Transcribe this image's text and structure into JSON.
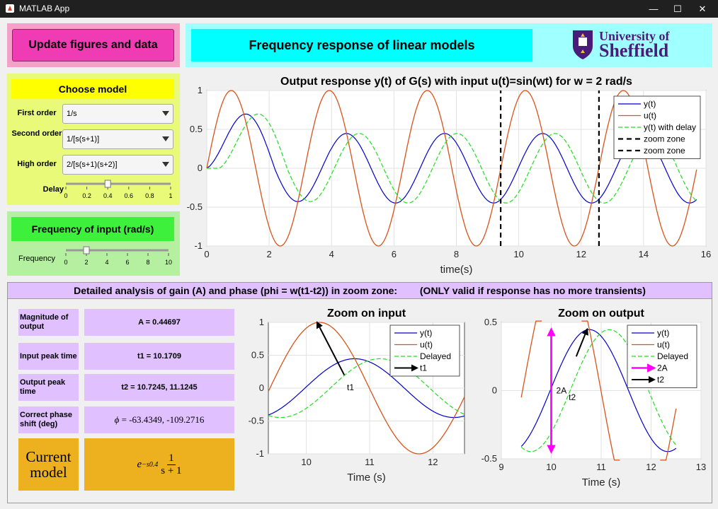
{
  "window": {
    "title": "MATLAB App"
  },
  "update_button": "Update figures and data",
  "model_panel": {
    "title": "Choose model",
    "first_order_label": "First order",
    "first_order_value": "1/s",
    "second_order_label": "Second order",
    "second_order_value": "1/[s(s+1)]",
    "high_order_label": "High order",
    "high_order_value": "2/[s(s+1)(s+2)]",
    "delay_label": "Delay",
    "delay_value": 0.4,
    "delay_ticks": [
      "0",
      "0.2",
      "0.4",
      "0.6",
      "0.8",
      "1"
    ]
  },
  "frequency_panel": {
    "title": "Frequency of input (rad/s)",
    "label": "Frequency",
    "value": 2,
    "ticks": [
      "0",
      "2",
      "4",
      "6",
      "8",
      "10"
    ]
  },
  "header": {
    "title": "Frequency response of linear models",
    "logo_text_1": "University of",
    "logo_text_2": "Sheffield"
  },
  "main_plot": {
    "title": "Output response y(t) of G(s) with input u(t)=sin(wt) for w = 2 rad/s",
    "xlabel": "time(s)",
    "xticks": [
      "0",
      "2",
      "4",
      "6",
      "8",
      "10",
      "12",
      "14",
      "16"
    ],
    "yticks": [
      "1",
      "0.5",
      "0",
      "-0.5",
      "-1"
    ],
    "legend": [
      "y(t)",
      "u(t)",
      "y(t) with delay",
      "zoom zone",
      "zoom zone"
    ]
  },
  "analysis": {
    "header_left": "Detailed analysis of gain (A) and phase (phi = w(t1-t2)) in zoom zone:",
    "header_right": "(ONLY valid if response has no more transients)",
    "rows": [
      {
        "label": "Magnitude of output",
        "value": "A = 0.44697"
      },
      {
        "label": "Input peak time",
        "value": "t1 = 10.1709"
      },
      {
        "label": "Output peak time",
        "value": "t2 = 10.7245,   11.1245"
      },
      {
        "label": "Correct phase shift (deg)",
        "value": "= -63.4349, -109.2716"
      }
    ],
    "phi_symbol": "ϕ",
    "current_model_label": "Current model",
    "current_model_formula_base": "e",
    "current_model_formula_exp": "−s0.4",
    "current_model_num": "1",
    "current_model_den": "s + 1"
  },
  "zoom_input": {
    "title": "Zoom on input",
    "xlabel": "Time (s)",
    "xticks": [
      "10",
      "11",
      "12"
    ],
    "yticks": [
      "1",
      "0.5",
      "0",
      "-0.5",
      "-1"
    ],
    "legend": [
      "y(t)",
      "u(t)",
      "Delayed",
      "t1"
    ],
    "annot": "t1"
  },
  "zoom_output": {
    "title": "Zoom on output",
    "xlabel": "Time (s)",
    "xticks": [
      "9",
      "10",
      "11",
      "12",
      "13"
    ],
    "yticks": [
      "0.5",
      "0",
      "-0.5"
    ],
    "legend": [
      "y(t)",
      "u(t)",
      "Delayed",
      "2A",
      "t2"
    ],
    "annot_2a": "2A",
    "annot_t2": "t2"
  },
  "chart_data": [
    {
      "type": "line",
      "title": "Output response y(t) of G(s) with input u(t)=sin(wt) for w = 2 rad/s",
      "xlabel": "time(s)",
      "ylabel": "",
      "xlim": [
        0,
        16
      ],
      "ylim": [
        -1,
        1
      ],
      "grid": true,
      "legend_position": "top-right",
      "series": [
        {
          "name": "y(t)",
          "color": "#0000cc",
          "x": [
            0,
            0.5,
            1,
            1.3,
            2,
            2.9,
            3.5,
            4.5,
            5.5,
            6.1,
            7,
            7.7,
            8.6,
            9.2,
            10,
            10.8,
            11.7,
            12.3,
            13.2,
            13.9,
            14.8,
            15.6
          ],
          "y": [
            0,
            0.3,
            0.52,
            0.56,
            0.2,
            -0.43,
            -0.3,
            0.45,
            0.0,
            -0.45,
            0.1,
            0.45,
            -0.1,
            -0.45,
            0.1,
            0.45,
            -0.1,
            -0.45,
            0.1,
            0.45,
            -0.1,
            -0.43
          ]
        },
        {
          "name": "u(t)",
          "color": "#d95319",
          "x": [
            0,
            0.79,
            1.57,
            2.36,
            3.14,
            3.93,
            4.71,
            5.5,
            6.28,
            7.07,
            7.85,
            8.64,
            9.42,
            10.21,
            11,
            11.78,
            12.57,
            13.35,
            14.14,
            14.92,
            15.7
          ],
          "y": [
            0,
            1,
            0,
            -1,
            0,
            1,
            0,
            -1,
            0,
            1,
            0,
            -1,
            0,
            1,
            0,
            -1,
            0,
            1,
            0,
            -1,
            0
          ]
        },
        {
          "name": "y(t) with delay",
          "color": "#22dd22",
          "x": [
            0,
            0.4,
            0.9,
            1.7,
            2.4,
            3.3,
            4.1,
            4.9,
            5.7,
            6.5,
            7.3,
            8.1,
            8.9,
            9.6,
            10.4,
            11.2,
            12,
            12.7,
            13.5,
            14.3,
            15.1,
            15.6
          ],
          "y": [
            0,
            0,
            0.3,
            0.56,
            0.2,
            -0.43,
            0.0,
            0.45,
            0.0,
            -0.45,
            0.1,
            0.45,
            -0.1,
            -0.45,
            0.1,
            0.45,
            -0.1,
            -0.45,
            0.1,
            0.45,
            -0.1,
            -0.4
          ]
        },
        {
          "name": "zoom zone",
          "color": "#000000",
          "x": [
            9.42,
            9.42
          ],
          "y": [
            -1,
            1
          ]
        },
        {
          "name": "zoom zone",
          "color": "#000000",
          "x": [
            12.57,
            12.57
          ],
          "y": [
            -1,
            1
          ]
        }
      ]
    },
    {
      "type": "line",
      "title": "Zoom on input",
      "xlabel": "Time (s)",
      "ylabel": "",
      "xlim": [
        9.4,
        12.5
      ],
      "ylim": [
        -1,
        1
      ],
      "grid": true,
      "legend_position": "top-right",
      "series": [
        {
          "name": "y(t)",
          "color": "#0000cc",
          "x": [
            9.4,
            9.8,
            10.2,
            10.72,
            11.2,
            11.7,
            12.3,
            12.5
          ],
          "y": [
            -0.4,
            -0.2,
            0.15,
            0.45,
            0.3,
            -0.05,
            -0.45,
            -0.4
          ]
        },
        {
          "name": "u(t)",
          "color": "#d95319",
          "x": [
            9.4,
            9.8,
            10.17,
            10.6,
            11.0,
            11.4,
            11.8,
            12.2,
            12.5
          ],
          "y": [
            0,
            0.7,
            1,
            0.7,
            0,
            -0.7,
            -1,
            -0.6,
            0
          ]
        },
        {
          "name": "Delayed",
          "color": "#22dd22",
          "x": [
            9.4,
            9.6,
            10.0,
            10.5,
            11.12,
            11.6,
            12.0,
            12.5
          ],
          "y": [
            -0.4,
            -0.45,
            -0.3,
            0.15,
            0.45,
            0.3,
            -0.05,
            -0.43
          ]
        },
        {
          "name": "t1",
          "color": "#000000",
          "x": [
            10.6,
            10.17
          ],
          "y": [
            0.2,
            1
          ]
        }
      ]
    },
    {
      "type": "line",
      "title": "Zoom on output",
      "xlabel": "Time (s)",
      "ylabel": "",
      "xlim": [
        9,
        13
      ],
      "ylim": [
        -0.5,
        0.5
      ],
      "grid": true,
      "legend_position": "top-right",
      "series": [
        {
          "name": "y(t)",
          "color": "#0000cc",
          "x": [
            9.4,
            9.8,
            10.2,
            10.72,
            11.2,
            11.7,
            12.3,
            12.5
          ],
          "y": [
            -0.4,
            -0.2,
            0.15,
            0.45,
            0.3,
            -0.05,
            -0.45,
            -0.4
          ]
        },
        {
          "name": "u(t)",
          "color": "#d95319",
          "x": [
            9.4,
            9.7,
            10.0
          ],
          "y": [
            -0.1,
            0.4,
            0.5
          ]
        },
        {
          "name": "Delayed",
          "color": "#22dd22",
          "x": [
            9.4,
            9.6,
            10.0,
            10.5,
            11.12,
            11.6,
            12.0,
            12.5
          ],
          "y": [
            -0.4,
            -0.45,
            -0.3,
            0.15,
            0.45,
            0.3,
            -0.05,
            -0.43
          ]
        },
        {
          "name": "2A",
          "color": "#ff00ff",
          "x": [
            10,
            10
          ],
          "y": [
            -0.45,
            0.45
          ]
        },
        {
          "name": "t2",
          "color": "#000000",
          "x": [
            10.5,
            10.72
          ],
          "y": [
            0.25,
            0.45
          ]
        }
      ]
    }
  ]
}
